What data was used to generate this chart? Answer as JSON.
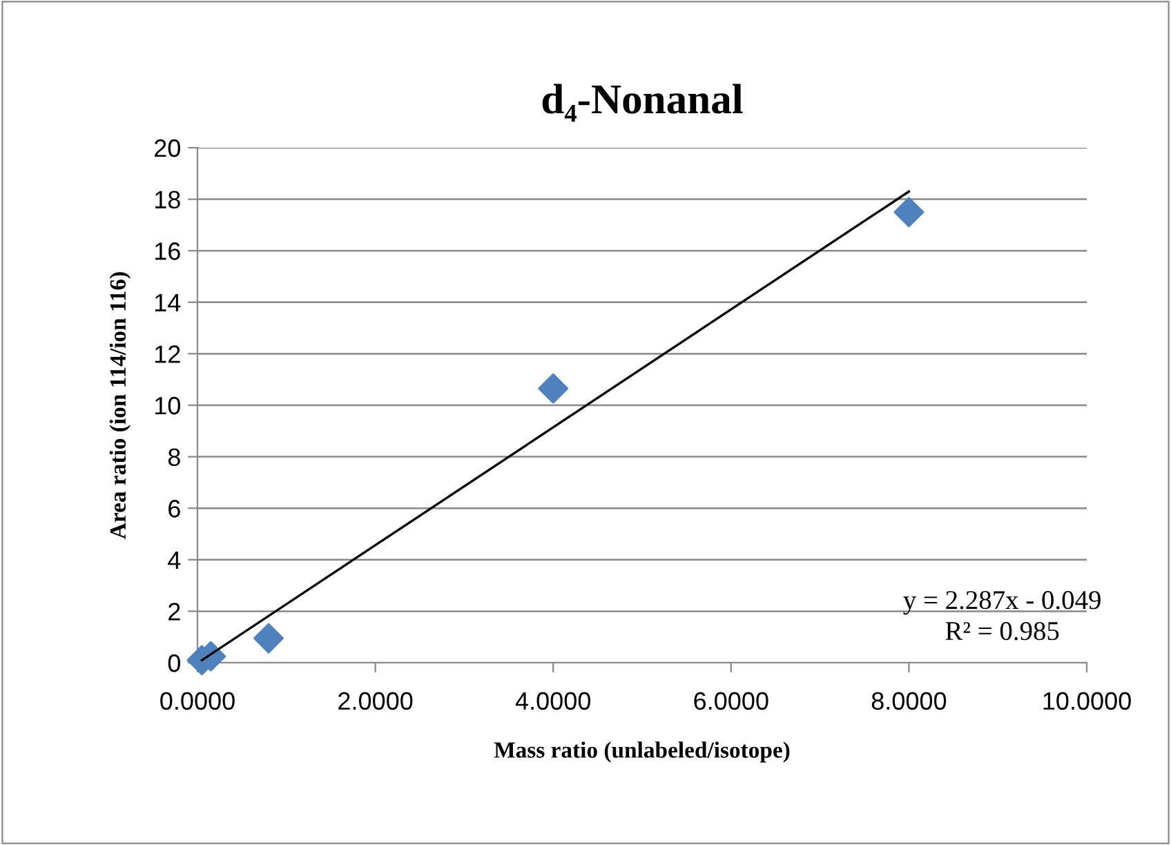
{
  "chart_data": {
    "type": "scatter",
    "title": "d₄-Nonanal",
    "xlabel": "Mass ratio (unlabeled/isotope)",
    "ylabel": "Area ratio (ion 114/ion 116)",
    "series": [
      {
        "type": "scatter",
        "color": "#4f81bd",
        "marker": "diamond",
        "x": [
          0.05,
          0.15,
          0.8,
          4.0,
          8.0
        ],
        "values": [
          0.1,
          0.25,
          0.95,
          10.65,
          17.5
        ]
      },
      {
        "type": "line",
        "color": "#000000",
        "marker": "none",
        "line_style": "solid",
        "x": [
          0.05,
          8.0
        ],
        "values": [
          0.1,
          18.3
        ]
      }
    ],
    "annotations": [
      "y = 2.287x - 0.049",
      "R² = 0.985"
    ],
    "xlim": [
      0,
      10
    ],
    "xticks": [
      {
        "value": 0,
        "label": "0.0000"
      },
      {
        "value": 2,
        "label": "2.0000"
      },
      {
        "value": 4,
        "label": "4.0000"
      },
      {
        "value": 6,
        "label": "6.0000"
      },
      {
        "value": 8,
        "label": "8.0000"
      },
      {
        "value": 10,
        "label": "10.0000"
      }
    ],
    "ylim": [
      0,
      20
    ],
    "yticks": [
      0,
      2,
      4,
      6,
      8,
      10,
      12,
      14,
      16,
      18,
      20
    ],
    "grid": "y",
    "legend": false
  }
}
